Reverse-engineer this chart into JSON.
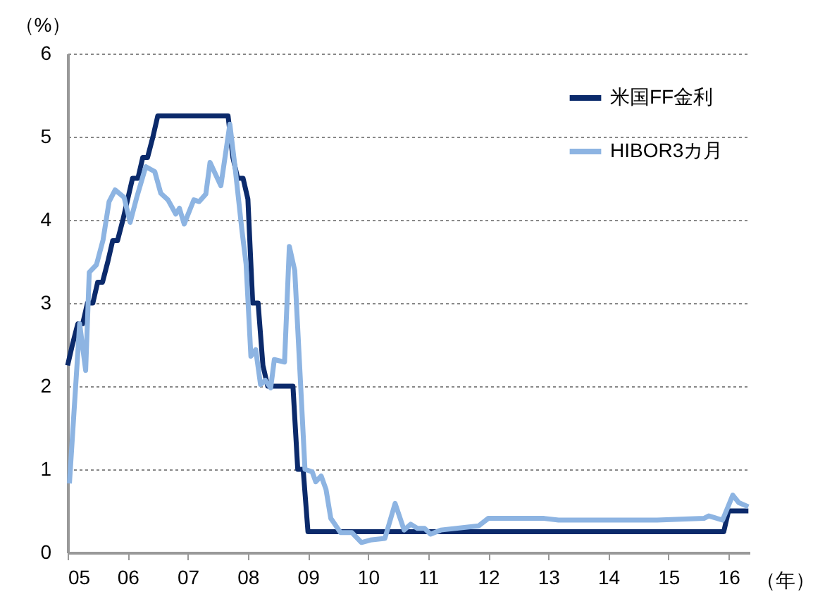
{
  "chart_data": {
    "type": "line",
    "ylabel": "（%）",
    "xlabel": "（年）",
    "xlim": [
      2005,
      2016.35
    ],
    "xticks": [
      {
        "value": 2005,
        "label": "05"
      },
      {
        "value": 2006,
        "label": "06"
      },
      {
        "value": 2007,
        "label": "07"
      },
      {
        "value": 2008,
        "label": "08"
      },
      {
        "value": 2009,
        "label": "09"
      },
      {
        "value": 2010,
        "label": "10"
      },
      {
        "value": 2011,
        "label": "11"
      },
      {
        "value": 2012,
        "label": "12"
      },
      {
        "value": 2013,
        "label": "13"
      },
      {
        "value": 2014,
        "label": "14"
      },
      {
        "value": 2015,
        "label": "15"
      },
      {
        "value": 2016,
        "label": "16"
      }
    ],
    "ylim": [
      0,
      6
    ],
    "yticks": [
      0,
      1,
      2,
      3,
      4,
      5,
      6
    ],
    "grid": "y",
    "legend": "top right",
    "line_style": "solid",
    "marker": "none",
    "series": [
      {
        "name": "米国FF金利",
        "color": "#0b2a6b",
        "x": [
          2005.0,
          2005.08,
          2005.17,
          2005.25,
          2005.33,
          2005.42,
          2005.5,
          2005.58,
          2005.67,
          2005.75,
          2005.83,
          2005.92,
          2006.0,
          2006.08,
          2006.17,
          2006.25,
          2006.33,
          2006.42,
          2006.5,
          2007.67,
          2007.75,
          2007.83,
          2007.92,
          2008.0,
          2008.08,
          2008.17,
          2008.25,
          2008.33,
          2008.75,
          2008.83,
          2008.92,
          2009.0,
          2015.92,
          2016.0,
          2016.33
        ],
        "values": [
          2.25,
          2.5,
          2.75,
          2.75,
          3.0,
          3.0,
          3.25,
          3.25,
          3.5,
          3.75,
          3.75,
          4.0,
          4.25,
          4.5,
          4.5,
          4.75,
          4.75,
          5.0,
          5.25,
          5.25,
          4.75,
          4.5,
          4.5,
          4.25,
          3.0,
          3.0,
          2.25,
          2.0,
          2.0,
          1.0,
          1.0,
          0.25,
          0.25,
          0.5,
          0.5
        ]
      },
      {
        "name": "HIBOR3カ月",
        "color": "#8db4e2",
        "x": [
          2005.03,
          2005.2,
          2005.3,
          2005.36,
          2005.48,
          2005.59,
          2005.69,
          2005.79,
          2005.94,
          2006.04,
          2006.15,
          2006.3,
          2006.45,
          2006.55,
          2006.67,
          2006.8,
          2006.86,
          2006.94,
          2007.1,
          2007.19,
          2007.3,
          2007.37,
          2007.55,
          2007.7,
          2007.79,
          2007.9,
          2007.97,
          2008.05,
          2008.13,
          2008.21,
          2008.29,
          2008.38,
          2008.44,
          2008.61,
          2008.69,
          2008.78,
          2008.95,
          2009.07,
          2009.13,
          2009.22,
          2009.3,
          2009.38,
          2009.42,
          2009.54,
          2009.73,
          2009.89,
          2010.04,
          2010.28,
          2010.45,
          2010.6,
          2010.71,
          2010.82,
          2010.94,
          2011.04,
          2011.21,
          2011.84,
          2012.0,
          2012.93,
          2013.17,
          2014.02,
          2014.81,
          2015.59,
          2015.67,
          2015.9,
          2016.07,
          2016.17,
          2016.33
        ],
        "values": [
          0.83,
          2.75,
          2.19,
          3.37,
          3.46,
          3.76,
          4.22,
          4.36,
          4.27,
          3.97,
          4.27,
          4.64,
          4.58,
          4.32,
          4.24,
          4.07,
          4.14,
          3.95,
          4.24,
          4.22,
          4.31,
          4.69,
          4.41,
          5.15,
          4.61,
          3.88,
          3.47,
          2.36,
          2.44,
          2.02,
          2.07,
          1.98,
          2.32,
          2.29,
          3.68,
          3.39,
          1.0,
          0.97,
          0.85,
          0.92,
          0.76,
          0.41,
          0.37,
          0.24,
          0.24,
          0.12,
          0.15,
          0.17,
          0.59,
          0.27,
          0.34,
          0.29,
          0.29,
          0.22,
          0.27,
          0.32,
          0.41,
          0.41,
          0.39,
          0.39,
          0.39,
          0.41,
          0.44,
          0.39,
          0.69,
          0.6,
          0.55
        ]
      }
    ]
  }
}
